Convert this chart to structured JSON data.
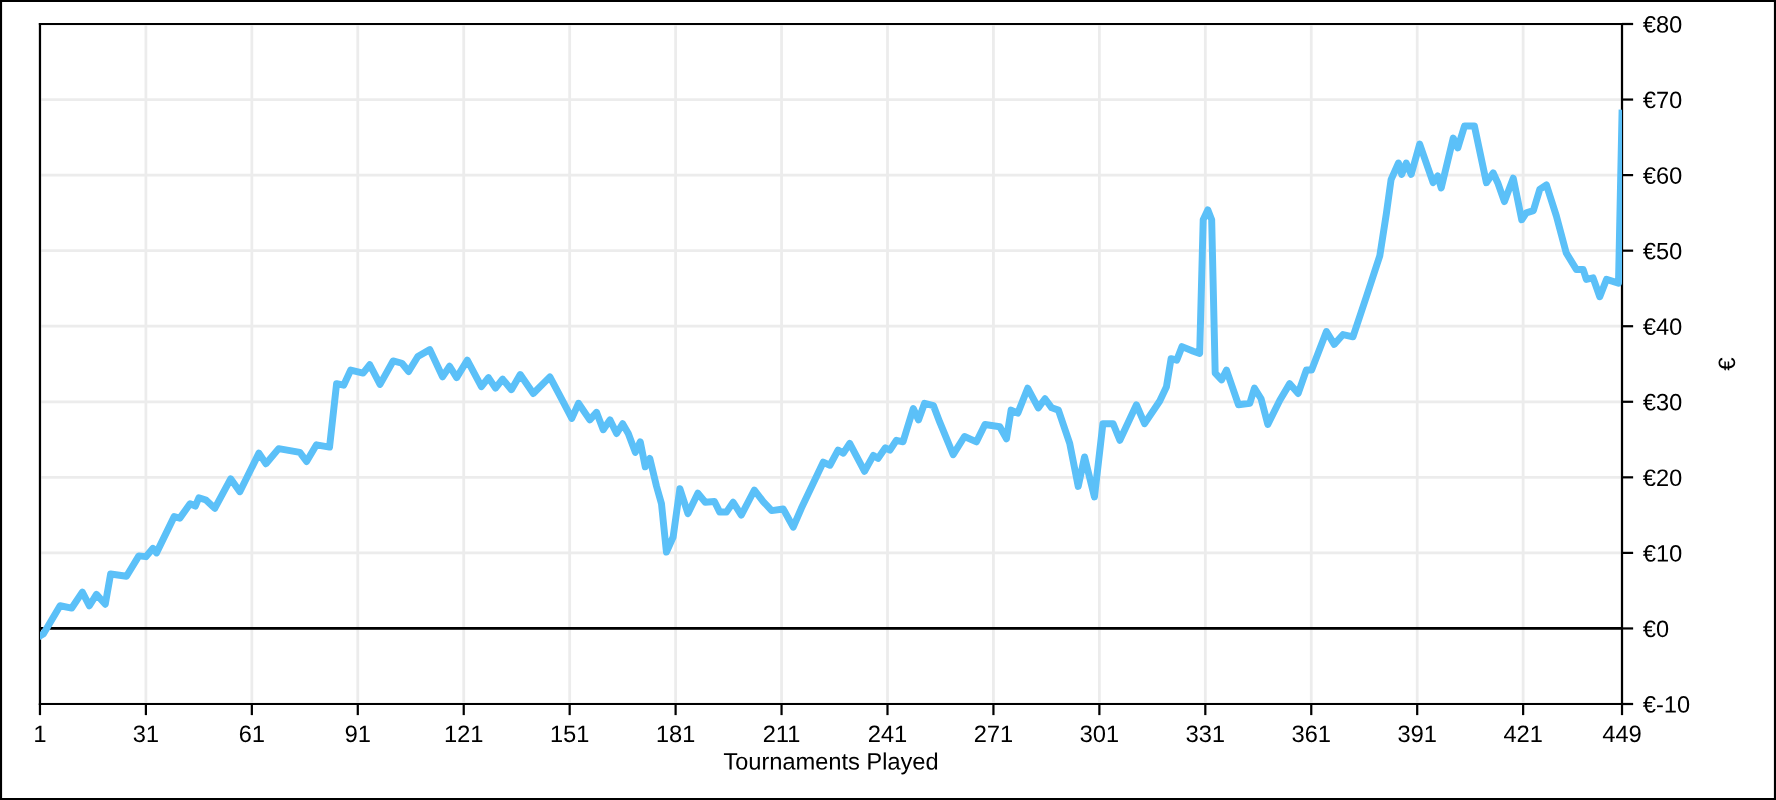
{
  "chart_data": {
    "type": "line",
    "xlabel": "Tournaments Played",
    "ylabel": "€",
    "x": [
      1,
      2,
      6.7,
      10,
      13,
      15,
      17,
      19.5,
      21,
      25.5,
      29,
      31,
      33,
      34,
      39,
      40.6,
      43.5,
      45,
      46,
      48,
      50.5,
      55,
      57.6,
      63,
      65,
      68.6,
      74.6,
      76.5,
      79.3,
      83,
      85,
      87,
      89,
      92.5,
      94.4,
      97.3,
      101,
      103.5,
      105.4,
      108,
      111.4,
      115,
      117,
      119,
      122,
      126,
      128,
      130,
      132,
      134.5,
      137,
      140.7,
      145.4,
      148,
      151.6,
      153.5,
      156.7,
      158.6,
      160.5,
      162.4,
      164.3,
      166,
      167.6,
      169.6,
      171,
      172.4,
      173.7,
      175.6,
      177,
      178.4,
      180.3,
      182.2,
      184.5,
      187.3,
      189.4,
      192,
      193.5,
      195.4,
      197.3,
      199.6,
      203.3,
      205.8,
      208.2,
      211.5,
      214.3,
      216.6,
      222.8,
      224.7,
      227,
      228.5,
      230.3,
      234.5,
      237,
      238.3,
      240.4,
      241.7,
      243.5,
      245.4,
      248.3,
      249.8,
      251.5,
      254,
      255.8,
      259.6,
      262.8,
      266.2,
      268.6,
      272.8,
      274.7,
      276,
      277.9,
      280.7,
      283.7,
      285.6,
      287.5,
      289.4,
      292.6,
      295,
      296.8,
      299.6,
      302,
      304.9,
      306.8,
      311.5,
      313.8,
      318.1,
      320,
      321.3,
      322.9,
      324.4,
      327.6,
      329.4,
      330.4,
      331.7,
      332.8,
      333.8,
      335.6,
      337,
      340.4,
      343.6,
      344.9,
      346.8,
      348.7,
      352.1,
      354.9,
      357.3,
      359.6,
      361.1,
      365.3,
      367.5,
      370,
      372.8,
      376.6,
      380.4,
      382.3,
      383.6,
      385.7,
      386.6,
      387.9,
      389.3,
      391.7,
      395.5,
      396.8,
      397.8,
      401.2,
      402.5,
      404.4,
      407.2,
      410.6,
      412.5,
      413.8,
      415.7,
      418.2,
      420.6,
      421.9,
      423.9,
      425.7,
      427.6,
      430.4,
      433.2,
      436.1,
      438,
      438.9,
      440.8,
      442.7,
      444.6,
      448,
      449
    ],
    "series": [
      {
        "color": "#5bc0f8",
        "values": [
          -1,
          -0.7,
          3,
          2.7,
          4.8,
          3,
          4.5,
          3.2,
          7.2,
          6.9,
          9.6,
          9.5,
          10.6,
          10,
          14.8,
          14.6,
          16.5,
          16.2,
          17.3,
          17,
          15.9,
          19.8,
          18.1,
          23.2,
          21.8,
          23.8,
          23.3,
          22.1,
          24.3,
          24,
          32.4,
          32.2,
          34.2,
          33.8,
          34.9,
          32.3,
          35.4,
          35.1,
          34,
          36,
          36.9,
          33.3,
          34.7,
          33.2,
          35.5,
          32,
          33.2,
          31.8,
          33,
          31.6,
          33.6,
          31.1,
          33.3,
          31,
          27.8,
          29.8,
          27.6,
          28.6,
          26.3,
          27.6,
          25.8,
          27.1,
          25.8,
          23.3,
          24.7,
          21.4,
          22.5,
          18.8,
          16.5,
          10.1,
          12.1,
          18.5,
          15.2,
          17.9,
          16.7,
          16.8,
          15.4,
          15.4,
          16.7,
          15,
          18.3,
          16.8,
          15.6,
          15.8,
          13.4,
          15.9,
          22,
          21.6,
          23.6,
          23.2,
          24.5,
          20.8,
          22.9,
          22.5,
          23.9,
          23.6,
          24.9,
          24.7,
          29.1,
          27.6,
          29.8,
          29.5,
          27.3,
          23,
          25.4,
          24.7,
          27,
          26.7,
          25.1,
          28.9,
          28.5,
          31.8,
          29.2,
          30.4,
          29.2,
          28.9,
          24.5,
          18.8,
          22.7,
          17.4,
          27.1,
          27.1,
          24.9,
          29.6,
          27.1,
          30.1,
          32,
          35.7,
          35.5,
          37.3,
          36.7,
          36.4,
          54.1,
          55.4,
          54.1,
          33.8,
          32.9,
          34.2,
          29.6,
          29.8,
          31.8,
          30.4,
          27,
          30.2,
          32.4,
          31.1,
          34.2,
          34.2,
          39.3,
          37.6,
          38.9,
          38.6,
          43.9,
          49.3,
          55,
          59.4,
          61.6,
          60.1,
          61.6,
          60.1,
          64.1,
          59,
          59.9,
          58.3,
          64.9,
          63.6,
          66.5,
          66.5,
          59,
          60.3,
          59,
          56.5,
          59.6,
          54.1,
          55,
          55.3,
          58.1,
          58.7,
          54.6,
          49.7,
          47.5,
          47.5,
          46.2,
          46.4,
          43.9,
          46.2,
          45.7,
          68.2
        ]
      }
    ],
    "xlim": [
      1,
      449
    ],
    "xticks": [
      1,
      31,
      61,
      91,
      121,
      151,
      181,
      211,
      241,
      271,
      301,
      331,
      361,
      391,
      421,
      449
    ],
    "ylim": [
      -10,
      80
    ],
    "yticks": [
      {
        "value": -10,
        "label": "€-10"
      },
      {
        "value": 0,
        "label": "€0"
      },
      {
        "value": 10,
        "label": "€10"
      },
      {
        "value": 20,
        "label": "€20"
      },
      {
        "value": 30,
        "label": "€30"
      },
      {
        "value": 40,
        "label": "€40"
      },
      {
        "value": 50,
        "label": "€50"
      },
      {
        "value": 60,
        "label": "€60"
      },
      {
        "value": 70,
        "label": "€70"
      },
      {
        "value": 80,
        "label": "€80"
      }
    ],
    "ref_lines": [
      {
        "axis": "y",
        "value": 0,
        "color": "#000000"
      }
    ],
    "grid": true,
    "marker": "none",
    "line_style": "solid"
  }
}
